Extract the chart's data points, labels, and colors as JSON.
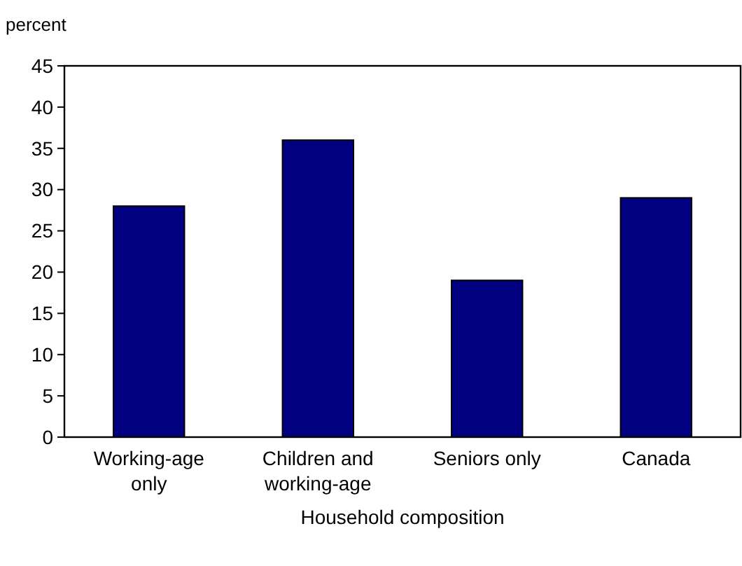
{
  "chart_data": {
    "type": "bar",
    "ylabel": "percent",
    "xlabel": "Household composition",
    "categories": [
      "Working-age only",
      "Children and working-age",
      "Seniors only",
      "Canada"
    ],
    "values": [
      28,
      36,
      19,
      29
    ],
    "color": "#000080",
    "ylim": [
      0,
      45
    ],
    "yticks": [
      0,
      5,
      10,
      15,
      20,
      25,
      30,
      35,
      40,
      45
    ],
    "grid": false
  }
}
